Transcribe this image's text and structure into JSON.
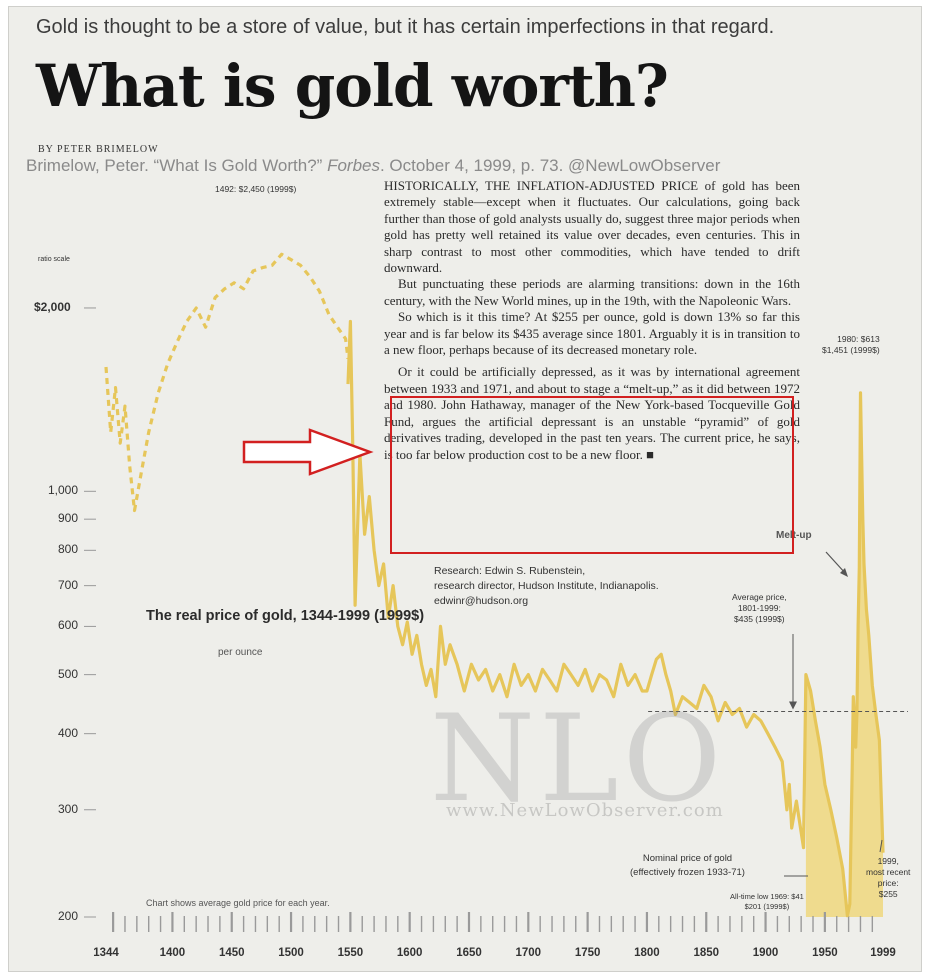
{
  "header": {
    "subtitle": "Gold is thought to be a store of value, but it has certain imperfections in that regard.",
    "headline": "What is gold worth?",
    "byline": "BY PETER BRIMELOW",
    "citation_parts": {
      "a": "Brimelow, Peter. “What Is Gold Worth?” ",
      "b": "Forbes",
      "c": ". October 4, 1999, p. 73. @NewLowObserver"
    }
  },
  "article": {
    "paragraphs": [
      "HISTORICALLY, THE INFLATION-ADJUSTED PRICE of gold has been extremely stable—except when it fluctuates. Our calculations, going back further than those of gold analysts usually do, suggest three major periods when gold has pretty well retained its value over decades, even centuries. This in sharp contrast to most other commodities, which have tended to drift downward.",
      "But punctuating these periods are alarming transitions: down in the 16th century, with the New World mines, up in the 19th, with the Napoleonic Wars.",
      "So which is it this time? At $255 per ounce, gold is down 13% so far this year and is far below its $435 average since 1801. Arguably it is in transition to a new floor, perhaps because of its decreased monetary role.",
      "Or it could be artificially depressed, as it was by international agreement between 1933 and 1971, and about to stage a “melt-up,” as it did between 1972 and 1980. John Hathaway, manager of the New York-based Tocqueville Gold Fund, argues the artificial depressant is an unstable “pyramid” of gold derivatives trading, developed in the past ten years. The current price, he says, is too far below production cost to be a new floor. ■"
    ],
    "research": [
      "Research: Edwin S. Rubenstein,",
      "research director, Hudson Institute, Indianapolis.",
      "edwinr@hudson.org"
    ]
  },
  "watermark": {
    "text": "NLO",
    "url": "www.NewLowObserver.com"
  },
  "colors": {
    "gold": "#e6c65a",
    "gold_fill": "#efd77e",
    "highlight": "#d22020",
    "arrow_outline": "#d22020"
  },
  "chart_data": {
    "type": "line",
    "title": "The real price of gold, 1344-1999 (1999$)",
    "unit": "per ounce",
    "scale_label": "ratio scale",
    "note": "Chart shows average gold price for each year.",
    "y_scale": "log",
    "ylim": [
      200,
      2700
    ],
    "xlim": [
      1344,
      1999
    ],
    "y_ticks": [
      {
        "value": 2000,
        "label": "$2,000"
      },
      {
        "value": 1000,
        "label": "1,000"
      },
      {
        "value": 900,
        "label": "900"
      },
      {
        "value": 800,
        "label": "800"
      },
      {
        "value": 700,
        "label": "700"
      },
      {
        "value": 600,
        "label": "600"
      },
      {
        "value": 500,
        "label": "500"
      },
      {
        "value": 400,
        "label": "400"
      },
      {
        "value": 300,
        "label": "300"
      },
      {
        "value": 200,
        "label": "200"
      }
    ],
    "x_ticks": [
      1344,
      1400,
      1450,
      1500,
      1550,
      1600,
      1650,
      1700,
      1750,
      1800,
      1850,
      1900,
      1950,
      1999
    ],
    "series": [
      {
        "style": "dashed",
        "x": [
          1344,
          1348,
          1352,
          1356,
          1360,
          1364,
          1368,
          1374,
          1380,
          1388,
          1396,
          1404,
          1412,
          1420,
          1428,
          1436,
          1444,
          1452,
          1460,
          1468,
          1476,
          1484,
          1492,
          1500,
          1508,
          1516,
          1524,
          1532,
          1540,
          1546,
          1548
        ],
        "y": [
          1600,
          1250,
          1480,
          1200,
          1380,
          1100,
          930,
          1080,
          1250,
          1450,
          1620,
          1760,
          1900,
          2000,
          1860,
          2080,
          2150,
          2200,
          2150,
          2300,
          2330,
          2350,
          2450,
          2400,
          2350,
          2250,
          2130,
          1950,
          1850,
          1780,
          1650
        ]
      },
      {
        "style": "solid",
        "x": [
          1548,
          1550,
          1552,
          1554,
          1558,
          1562,
          1566,
          1570,
          1574,
          1578,
          1582,
          1586,
          1590,
          1594,
          1598,
          1602,
          1606,
          1610,
          1614,
          1618,
          1622,
          1626,
          1630,
          1634,
          1640,
          1646,
          1652,
          1658,
          1664,
          1670,
          1676,
          1682,
          1688,
          1694,
          1700,
          1706,
          1712,
          1718,
          1724,
          1730,
          1736,
          1742,
          1748,
          1754,
          1760,
          1766,
          1772,
          1778,
          1784,
          1790,
          1796,
          1800,
          1804,
          1808,
          1812,
          1816,
          1820,
          1824,
          1830,
          1836,
          1842,
          1848,
          1854,
          1860,
          1866,
          1872,
          1878,
          1884,
          1890,
          1896,
          1902,
          1908,
          1914,
          1918,
          1920,
          1922,
          1926,
          1932,
          1934,
          1938,
          1942,
          1946,
          1950,
          1955,
          1960,
          1965,
          1969,
          1971,
          1973,
          1974,
          1976,
          1977,
          1978,
          1979,
          1980,
          1981,
          1982,
          1983,
          1985,
          1987,
          1990,
          1993,
          1996,
          1999
        ],
        "y": [
          1500,
          1900,
          1200,
          650,
          1150,
          850,
          980,
          800,
          700,
          760,
          620,
          700,
          600,
          560,
          610,
          540,
          580,
          520,
          480,
          510,
          460,
          600,
          520,
          560,
          520,
          470,
          520,
          490,
          510,
          470,
          500,
          460,
          520,
          480,
          500,
          470,
          510,
          490,
          470,
          520,
          500,
          480,
          510,
          470,
          500,
          490,
          460,
          520,
          480,
          500,
          470,
          470,
          500,
          530,
          540,
          500,
          470,
          430,
          460,
          450,
          440,
          480,
          460,
          420,
          450,
          430,
          440,
          410,
          430,
          420,
          400,
          380,
          360,
          300,
          330,
          280,
          310,
          260,
          500,
          470,
          420,
          380,
          330,
          300,
          270,
          240,
          201,
          210,
          350,
          460,
          380,
          430,
          600,
          750,
          1451,
          1150,
          900,
          760,
          640,
          580,
          480,
          430,
          390,
          255
        ]
      }
    ],
    "fill_under": {
      "from": 1933,
      "to": 1999
    },
    "average_line": {
      "value": 435,
      "from": 1801,
      "to": 1999
    },
    "annotations": {
      "peak_1492": "1492: $2,450 (1999$)",
      "peak_1980": [
        "1980: $613",
        "$1,451 (1999$)"
      ],
      "melt_up": "Melt-up",
      "average": [
        "Average price,",
        "1801-1999:",
        "$435 (1999$)"
      ],
      "nominal": [
        "Nominal price of gold",
        "(effectively frozen 1933-71)"
      ],
      "low_1969": [
        "All-time low 1969: $41",
        "$201 (1999$)"
      ],
      "recent_1999": [
        "1999,",
        "most recent",
        "price:",
        "$255"
      ]
    }
  }
}
